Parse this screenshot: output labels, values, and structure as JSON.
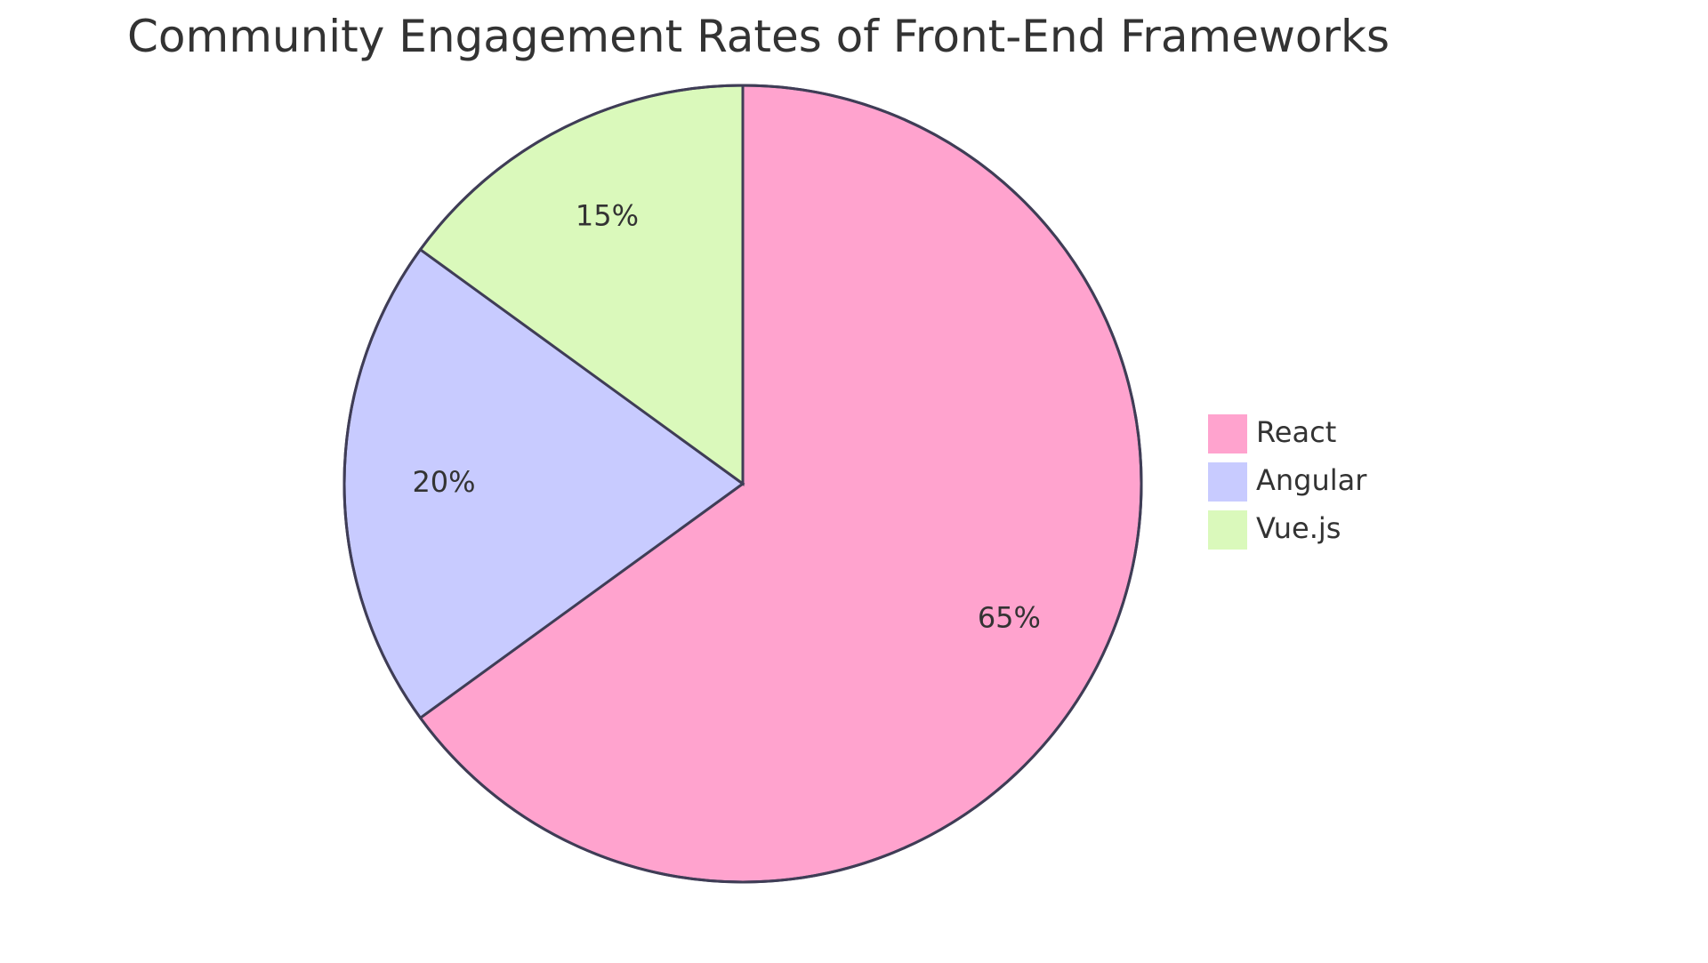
{
  "chart_data": {
    "type": "pie",
    "title": "Community Engagement Rates of Front-End Frameworks",
    "slices": [
      {
        "label": "React",
        "value": 65,
        "display": "65%",
        "color": "#FFA3CE"
      },
      {
        "label": "Angular",
        "value": 20,
        "display": "20%",
        "color": "#C8CBFF"
      },
      {
        "label": "Vue.js",
        "value": 15,
        "display": "15%",
        "color": "#DAF9BB"
      }
    ],
    "legend_position": "right",
    "stroke_color": "#3f3d56"
  }
}
